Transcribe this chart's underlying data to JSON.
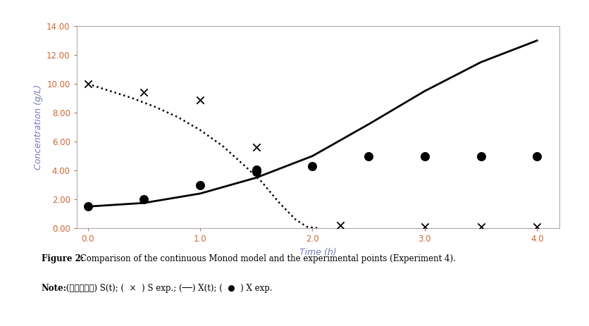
{
  "title": "",
  "xlabel": "Time (h)",
  "ylabel": "Concentration (g/L)",
  "xlabel_color": "#7777bb",
  "ylabel_color": "#7777bb",
  "tick_color": "#cc6633",
  "xlim": [
    -0.1,
    4.2
  ],
  "ylim": [
    0.0,
    14.0
  ],
  "yticks": [
    0.0,
    2.0,
    4.0,
    6.0,
    8.0,
    10.0,
    12.0,
    14.0
  ],
  "ytick_labels": [
    "0.00",
    "2.00",
    "4.00",
    "6.00",
    "8.00",
    "10.00",
    "12.00",
    "14.00"
  ],
  "xticks": [
    0.0,
    1.0,
    2.0,
    3.0,
    4.0
  ],
  "xtick_labels": [
    "0.0",
    "1.0",
    "2.0",
    "3.0",
    "4.0"
  ],
  "S_exp_x": [
    0.0,
    0.5,
    1.0,
    1.5,
    2.25,
    3.0,
    3.5,
    4.0
  ],
  "S_exp_y": [
    10.0,
    9.4,
    8.9,
    5.6,
    0.2,
    0.1,
    0.1,
    0.1
  ],
  "X_exp_x": [
    0.0,
    0.5,
    1.0,
    1.5,
    1.5,
    2.0,
    2.5,
    3.0,
    3.5,
    4.0
  ],
  "X_exp_y": [
    1.5,
    2.0,
    3.0,
    3.9,
    4.05,
    4.3,
    5.0,
    5.0,
    5.0,
    5.0
  ],
  "St_x": [
    0.0,
    0.2,
    0.4,
    0.6,
    0.8,
    1.0,
    1.2,
    1.4,
    1.55,
    1.7,
    1.85,
    1.95,
    2.05
  ],
  "St_y": [
    10.0,
    9.5,
    9.0,
    8.4,
    7.7,
    6.8,
    5.7,
    4.3,
    3.2,
    1.8,
    0.6,
    0.1,
    0.0
  ],
  "Xt_x": [
    0.0,
    0.5,
    1.0,
    1.5,
    2.0,
    2.5,
    3.0,
    3.5,
    4.0
  ],
  "Xt_y": [
    1.5,
    1.75,
    2.4,
    3.5,
    5.0,
    7.2,
    9.5,
    11.5,
    13.0
  ],
  "figure_caption_bold": "Figure 2:",
  "figure_caption_rest": " Comparison of the continuous Monod model and the experimental points (Experiment 4).",
  "figure_note_bold": "Note:",
  "figure_note_rest": " (⋯⋯⋯⋯⋯) S(t); (  ×  ) S exp.; (──) X(t); (  ●  ) X exp.",
  "line_color": "#000000",
  "dot_color": "#000000",
  "caption_color": "#000000",
  "caption_fontsize": 8.5,
  "background_color": "#ffffff",
  "spine_color": "#aaaaaa"
}
